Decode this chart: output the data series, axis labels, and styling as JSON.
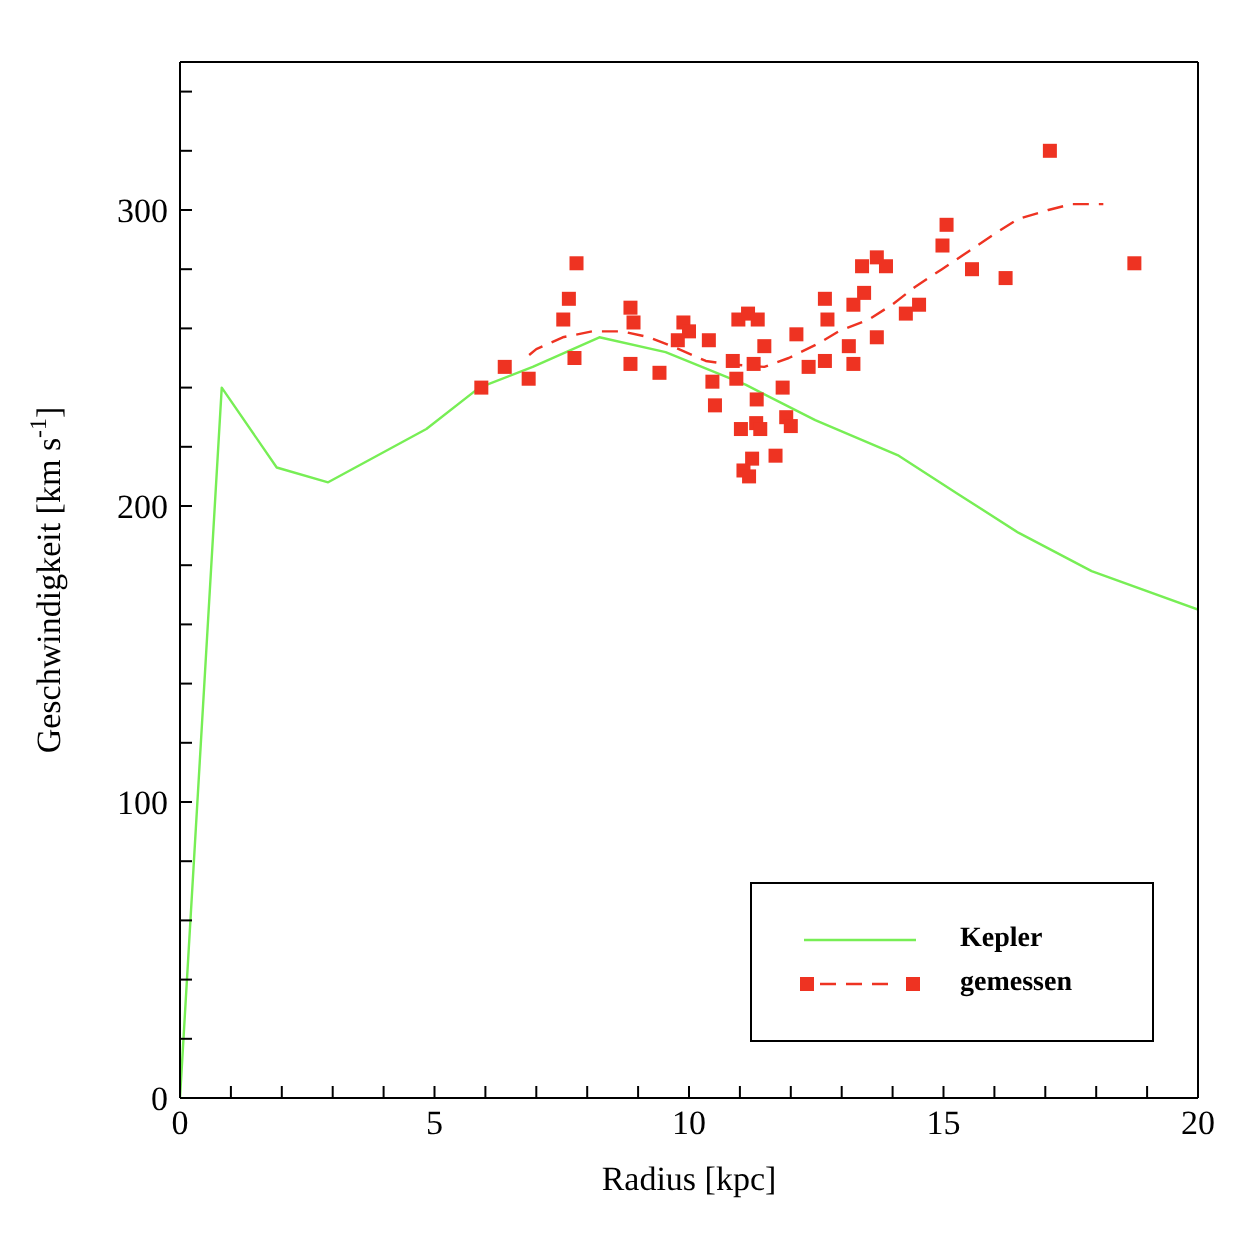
{
  "chart_data": {
    "type": "line",
    "xlabel": "Radius [kpc]",
    "ylabel": "Geschwindigkeit [km s$^{-1}$]",
    "xlim": [
      0,
      20
    ],
    "ylim": [
      0,
      350
    ],
    "xticks": [
      0,
      {
        "value": 1,
        "label": null
      },
      {
        "value": 2,
        "label": null
      },
      {
        "value": 3,
        "label": null
      },
      {
        "value": 4,
        "label": null
      },
      5,
      {
        "value": 6,
        "label": null
      },
      {
        "value": 7,
        "label": null
      },
      {
        "value": 8,
        "label": null
      },
      {
        "value": 9,
        "label": null
      },
      10,
      {
        "value": 11,
        "label": null
      },
      {
        "value": 12,
        "label": null
      },
      {
        "value": 13,
        "label": null
      },
      {
        "value": 14,
        "label": null
      },
      15,
      {
        "value": 16,
        "label": null
      },
      {
        "value": 17,
        "label": null
      },
      {
        "value": 18,
        "label": null
      },
      {
        "value": 19,
        "label": null
      },
      20
    ],
    "yticks": [
      0,
      {
        "value": 20,
        "label": null
      },
      {
        "value": 40,
        "label": null
      },
      {
        "value": 60,
        "label": null
      },
      {
        "value": 80,
        "label": null
      },
      100,
      {
        "value": 120,
        "label": null
      },
      {
        "value": 140,
        "label": null
      },
      {
        "value": 160,
        "label": null
      },
      {
        "value": 180,
        "label": null
      },
      200,
      {
        "value": 220,
        "label": null
      },
      {
        "value": 240,
        "label": null
      },
      {
        "value": 260,
        "label": null
      },
      {
        "value": 280,
        "label": null
      },
      300,
      {
        "value": 320,
        "label": null
      },
      {
        "value": 340,
        "label": null
      }
    ],
    "legend": "bottom right",
    "series": [
      {
        "name": "Kepler",
        "color": "#77ee55",
        "marker": "none",
        "line_style": "solid",
        "x": [
          0,
          0.82,
          1.9,
          2.91,
          4.84,
          5.88,
          6.93,
          8.24,
          9.54,
          11.11,
          12.48,
          14.12,
          15.29,
          16.47,
          17.91,
          20
        ],
        "values": [
          0,
          240,
          213,
          208,
          226,
          240,
          247,
          257,
          252,
          241,
          229,
          217,
          204,
          191,
          178,
          165
        ]
      },
      {
        "name": "gemessen",
        "type": "scatter",
        "color": "#ee3322",
        "marker": "square",
        "x": [
          5.92,
          6.38,
          6.85,
          7.79,
          7.64,
          7.53,
          7.75,
          8.85,
          8.91,
          8.85,
          9.42,
          9.89,
          10.0,
          9.78,
          10.39,
          10.86,
          10.46,
          10.51,
          10.93,
          10.97,
          11.16,
          11.35,
          11.48,
          11.27,
          11.33,
          11.84,
          11.02,
          11.32,
          11.4,
          11.91,
          12.0,
          11.24,
          11.07,
          11.18,
          11.7,
          12.11,
          12.35,
          12.67,
          12.72,
          12.67,
          13.14,
          13.23,
          13.23,
          13.44,
          13.4,
          13.69,
          13.87,
          13.69,
          14.26,
          14.52,
          14.98,
          15.06,
          15.56,
          16.22,
          17.09,
          18.75
        ],
        "values": [
          240,
          247,
          243,
          282,
          270,
          263,
          250,
          267,
          262,
          248,
          245,
          262,
          259,
          256,
          256,
          249,
          242,
          234,
          243,
          263,
          265,
          263,
          254,
          248,
          236,
          240,
          226,
          228,
          226,
          230,
          227,
          216,
          212,
          210,
          217,
          258,
          247,
          270,
          263,
          249,
          254,
          248,
          268,
          272,
          281,
          284,
          281,
          257,
          265,
          268,
          288,
          295,
          280,
          277,
          320,
          282
        ]
      },
      {
        "color": "#ee3322",
        "marker": "none",
        "line_style": "dashed",
        "x": [
          6.86,
          7.0,
          7.52,
          8.1,
          8.69,
          9.22,
          9.8,
          10.33,
          10.72,
          11.48,
          11.96,
          12.55,
          12.94,
          13.53,
          13.99,
          14.44,
          14.97,
          15.49,
          16.01,
          16.47,
          17.06,
          17.52,
          18.14
        ],
        "values": [
          251,
          253,
          257,
          259,
          259,
          257,
          253,
          249,
          248,
          247,
          250,
          255,
          259,
          263,
          268,
          274,
          280,
          286,
          292,
          297,
          300,
          302,
          302
        ]
      }
    ]
  }
}
